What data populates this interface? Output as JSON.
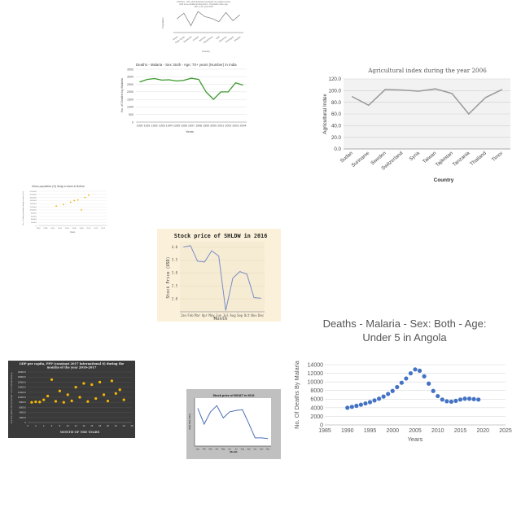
{
  "chart_data": [
    {
      "id": "pop",
      "type": "line",
      "title": "Orthodox - 100+ 2010 Estimated population by religious group (with some additional discussion) - Population stats: age 100+ in the year 2010",
      "xlabel": "Country",
      "ylabel": "Population",
      "categories": [
        "Brazil",
        "Cape Verde",
        "Equatorial",
        "Iceland",
        "Jamaica",
        "Kazakhstan",
        "Mali",
        "Myanmar",
        "Nicaragua",
        "Sweden"
      ],
      "values": [
        60,
        85,
        30,
        92,
        70,
        62,
        48,
        88,
        52,
        78
      ],
      "ylim": [
        0,
        100
      ]
    },
    {
      "id": "malaria-india",
      "type": "line",
      "title": "Deaths - Malaria - Sex: Both - Age: 70+ years (Number) in India",
      "xlabel": "Years",
      "ylabel": "No. of Deaths by Malaria",
      "x": [
        1990,
        1991,
        1992,
        1993,
        1994,
        1995,
        1996,
        1997,
        1998,
        1999,
        2000,
        2001,
        2002,
        2003,
        2004
      ],
      "values": [
        2650,
        2820,
        2880,
        2780,
        2800,
        2720,
        2770,
        2900,
        2820,
        2000,
        1500,
        2000,
        2000,
        2600,
        2450
      ],
      "yticks": [
        0,
        500,
        1000,
        1500,
        2000,
        2500,
        3000,
        3500
      ],
      "ylim": [
        0,
        3500
      ],
      "color": "#3a9a2a"
    },
    {
      "id": "agri",
      "type": "line",
      "title": "Agricultural index during the year 2006",
      "xlabel": "Country",
      "ylabel": "Agricultural Index",
      "categories": [
        "Sudan",
        "Suriname",
        "Sweden",
        "Switzerland",
        "Syria",
        "Taiwan",
        "Tajikistan",
        "Tanzania",
        "Thailand",
        "Timor"
      ],
      "values": [
        90,
        75,
        102,
        101,
        99,
        103,
        95,
        60,
        88,
        102
      ],
      "yticks": [
        "0.0",
        "20.0",
        "40.0",
        "60.0",
        "80.0",
        "100.0",
        "120.0"
      ],
      "ylim": [
        0,
        120
      ]
    },
    {
      "id": "urban",
      "type": "scatter",
      "title": "Urban population (%) living in slums in Bolivia",
      "xlabel": "Years",
      "ylabel": "No. of Urban population living in slums (%)",
      "x": [
        2001,
        2003,
        2005,
        2006,
        2007,
        2008,
        2009,
        2010
      ],
      "values": [
        1250000,
        1350000,
        1500000,
        1600000,
        1650000,
        1000000,
        1800000,
        1950000
      ],
      "xticks": [
        "1996",
        "1998",
        "2000",
        "2002",
        "2004",
        "2006",
        "2008",
        "2010",
        "2012",
        "2014"
      ],
      "xlim": [
        1996,
        2015
      ],
      "yticks": [
        "0",
        "200000",
        "400000",
        "600000",
        "800000",
        "1000000",
        "1200000",
        "1400000",
        "1600000",
        "1800000",
        "2000000",
        "2200000"
      ],
      "ylim": [
        0,
        2200000
      ],
      "color": "#e8b400"
    },
    {
      "id": "shldw",
      "type": "line",
      "title": "Stock price of SHLDW in 2016",
      "xlabel": "Month",
      "ylabel": "Stock Price (USD)",
      "categories": [
        "Jan",
        "Feb",
        "Mar",
        "Apr",
        "May",
        "Jun",
        "Jul",
        "Aug",
        "Sep",
        "Oct",
        "Nov",
        "Dec"
      ],
      "values": [
        4.0,
        4.05,
        3.45,
        3.42,
        3.85,
        3.65,
        1.55,
        2.8,
        3.05,
        2.95,
        2.05,
        2.02
      ],
      "yticks": [
        "2.0",
        "2.5",
        "3.0",
        "3.5",
        "4.0"
      ],
      "ylim": [
        1.5,
        4.2
      ]
    },
    {
      "id": "gdp",
      "type": "scatter",
      "title": "GDP per capita, PPP (constant 2017 international $) during the months of the year 2016-2017",
      "xlabel": "MONTH OF THE YEARS",
      "ylabel": "GDP PER CAPITA, PPP (CONSTANT 2017 INTERNATIONAL $)",
      "x": [
        1,
        2,
        3,
        4,
        5,
        6,
        7,
        8,
        9,
        10,
        11,
        12,
        13,
        14,
        15,
        16,
        17,
        18,
        19,
        20,
        21,
        22,
        23,
        24
      ],
      "values": [
        8000,
        8200,
        8100,
        9000,
        10500,
        17000,
        8400,
        12500,
        8000,
        11000,
        8600,
        14000,
        10000,
        15500,
        8300,
        15000,
        9500,
        16000,
        11000,
        8500,
        16500,
        11500,
        13000,
        9000
      ],
      "xticks": [
        "0",
        "2",
        "4",
        "6",
        "8",
        "10",
        "12",
        "14",
        "16",
        "18",
        "20",
        "22",
        "24",
        "26"
      ],
      "xlim": [
        0,
        26
      ],
      "yticks": [
        "0",
        "2000.0",
        "4000.0",
        "6000.0",
        "8000.0",
        "10000.0",
        "12000.0",
        "14000.0",
        "16000.0",
        "18000.0",
        "20000.0"
      ],
      "ylim": [
        0,
        20000
      ],
      "color": "#f5b800"
    },
    {
      "id": "moat",
      "type": "line",
      "title": "Stock price of MOAT in 2016",
      "xlabel": "Month",
      "ylabel": "Stock Price (USD)",
      "categories": [
        "Jan",
        "Feb",
        "Mar",
        "Apr",
        "May",
        "Jun",
        "Jul",
        "Aug",
        "Sep",
        "Oct",
        "Nov",
        "Dec"
      ],
      "values": [
        5.5,
        3.2,
        5.0,
        5.9,
        4.1,
        5.0,
        5.2,
        5.3,
        3.3,
        1.2,
        1.2,
        1.1
      ],
      "ylim": [
        0,
        7
      ]
    },
    {
      "id": "malaria-angola",
      "type": "scatter",
      "title": "Deaths - Malaria - Sex: Both - Age: Under 5 in Angola",
      "xlabel": "Years",
      "ylabel": "No. Of Deaths By Malaria",
      "x": [
        1990,
        1991,
        1992,
        1993,
        1994,
        1995,
        1996,
        1997,
        1998,
        1999,
        2000,
        2001,
        2002,
        2003,
        2004,
        2005,
        2006,
        2007,
        2008,
        2009,
        2010,
        2011,
        2012,
        2013,
        2014,
        2015,
        2016,
        2017,
        2018,
        2019
      ],
      "values": [
        4000,
        4200,
        4450,
        4700,
        5000,
        5300,
        5700,
        6100,
        6600,
        7200,
        7900,
        8800,
        9800,
        10800,
        12000,
        12900,
        12600,
        11300,
        9600,
        7900,
        6700,
        5900,
        5500,
        5400,
        5600,
        5900,
        6100,
        6100,
        6000,
        5900
      ],
      "xticks": [
        "1985",
        "1990",
        "1995",
        "2000",
        "2005",
        "2010",
        "2015",
        "2020",
        "2025"
      ],
      "xlim": [
        1985,
        2025
      ],
      "yticks": [
        "0",
        "2000",
        "4000",
        "6000",
        "8000",
        "10000",
        "12000",
        "14000"
      ],
      "ylim": [
        0,
        14000
      ],
      "color": "#4472c4"
    }
  ]
}
